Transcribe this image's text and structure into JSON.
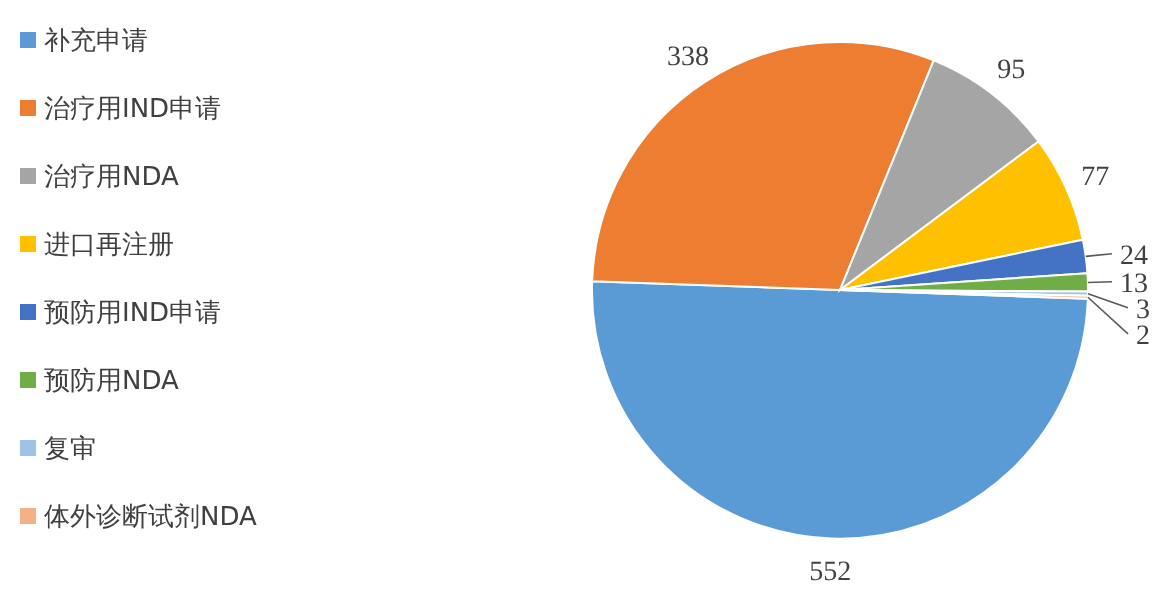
{
  "chart_data": {
    "type": "pie",
    "categories": [
      "补充申请",
      "治疗用IND申请",
      "治疗用NDA",
      "进口再注册",
      "预防用IND申请",
      "预防用NDA",
      "复审",
      "体外诊断试剂NDA"
    ],
    "values": [
      552,
      338,
      95,
      77,
      24,
      13,
      3,
      2
    ],
    "colors": [
      "#5b9bd5",
      "#ed7d31",
      "#a5a5a5",
      "#ffc000",
      "#4472c4",
      "#70ad47",
      "#9dc3e6",
      "#f4b183"
    ],
    "data_labels": true,
    "legend": "left"
  }
}
